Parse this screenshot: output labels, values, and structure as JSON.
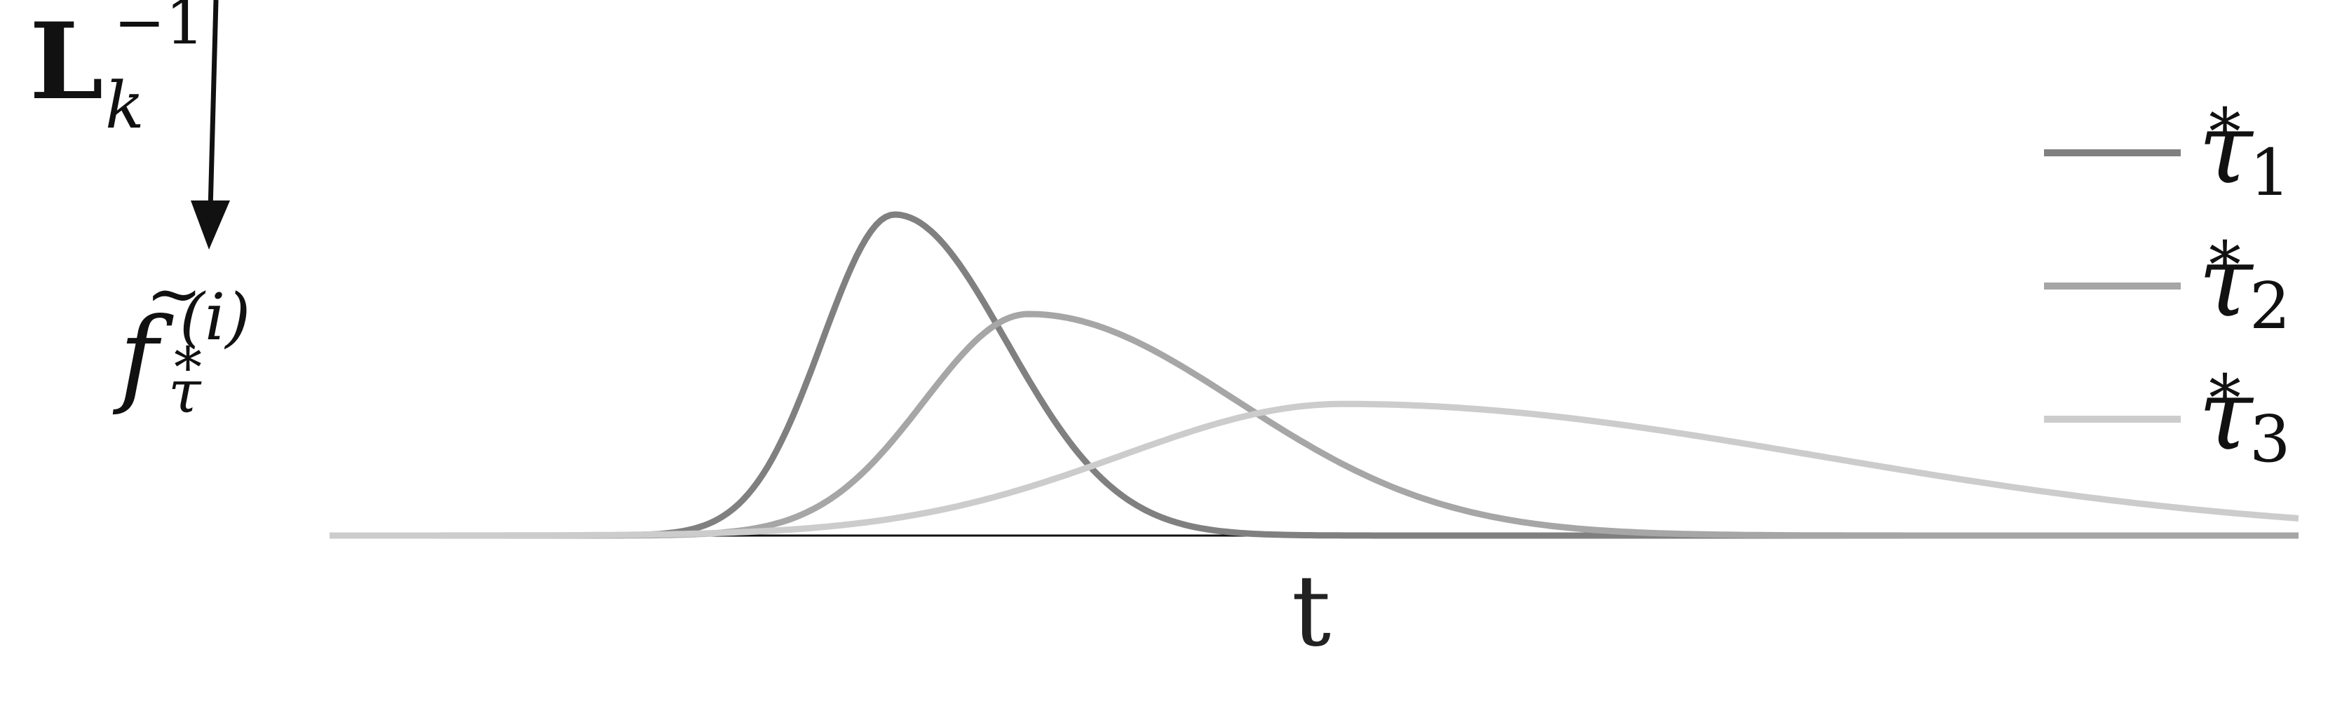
{
  "operator_label": {
    "base": "L",
    "superscript": "−1",
    "subscript": "k"
  },
  "function_label": {
    "base": "f",
    "accent": "~",
    "superscript": "(i)",
    "subscript_star": "*",
    "subscript_tau": "τ"
  },
  "axis": {
    "x_label": "t"
  },
  "chart_data": {
    "type": "line",
    "xlabel": "t",
    "ylabel": "",
    "grid": false,
    "legend_position": "right",
    "xlim": [
      0,
      1
    ],
    "ylim": [
      0,
      1
    ],
    "series": [
      {
        "name": "τ*1",
        "color": "#808080",
        "peak_x": 0.287,
        "peak_y": 1.0,
        "rise_width": 0.052,
        "fall_width": 0.08
      },
      {
        "name": "τ*2",
        "color": "#a6a6a6",
        "peak_x": 0.355,
        "peak_y": 0.69,
        "rise_width": 0.075,
        "fall_width": 0.15
      },
      {
        "name": "τ*3",
        "color": "#cccccc",
        "peak_x": 0.515,
        "peak_y": 0.41,
        "rise_width": 0.16,
        "fall_width": 0.34
      }
    ]
  },
  "legend": {
    "items": [
      {
        "tau": "τ",
        "star": "*",
        "index": "1",
        "color": "#808080"
      },
      {
        "tau": "τ",
        "star": "*",
        "index": "2",
        "color": "#a6a6a6"
      },
      {
        "tau": "τ",
        "star": "*",
        "index": "3",
        "color": "#cccccc"
      }
    ]
  }
}
